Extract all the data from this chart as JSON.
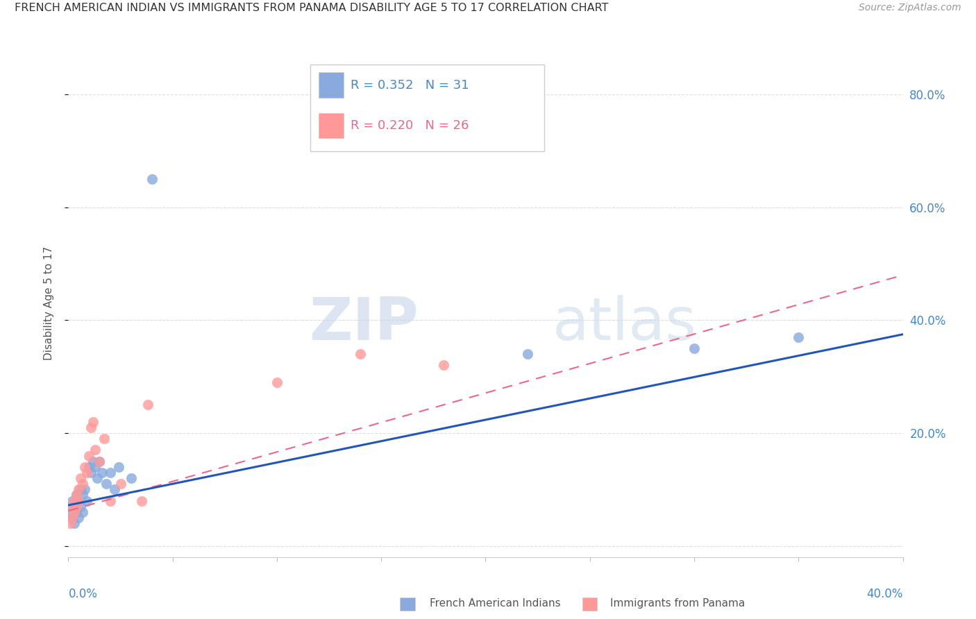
{
  "title": "FRENCH AMERICAN INDIAN VS IMMIGRANTS FROM PANAMA DISABILITY AGE 5 TO 17 CORRELATION CHART",
  "source": "Source: ZipAtlas.com",
  "ylabel": "Disability Age 5 to 17",
  "xrange": [
    0,
    0.4
  ],
  "yrange": [
    -0.02,
    0.88
  ],
  "legend_label1": "R = 0.352   N = 31",
  "legend_label2": "R = 0.220   N = 26",
  "color_blue": "#88AADD",
  "color_pink": "#FF9999",
  "trendline1_color": "#2255BB",
  "trendline2_color": "#EE6688",
  "blue_scatter_x": [
    0.001,
    0.002,
    0.002,
    0.003,
    0.003,
    0.004,
    0.004,
    0.005,
    0.005,
    0.006,
    0.006,
    0.007,
    0.007,
    0.008,
    0.009,
    0.01,
    0.011,
    0.012,
    0.013,
    0.014,
    0.015,
    0.016,
    0.018,
    0.02,
    0.022,
    0.024,
    0.03,
    0.04,
    0.22,
    0.3,
    0.35
  ],
  "blue_scatter_y": [
    0.06,
    0.08,
    0.05,
    0.07,
    0.04,
    0.09,
    0.06,
    0.08,
    0.05,
    0.1,
    0.07,
    0.09,
    0.06,
    0.1,
    0.08,
    0.14,
    0.13,
    0.15,
    0.14,
    0.12,
    0.15,
    0.13,
    0.11,
    0.13,
    0.1,
    0.14,
    0.12,
    0.65,
    0.34,
    0.35,
    0.37
  ],
  "pink_scatter_x": [
    0.001,
    0.002,
    0.002,
    0.003,
    0.003,
    0.004,
    0.004,
    0.005,
    0.005,
    0.006,
    0.007,
    0.008,
    0.009,
    0.01,
    0.011,
    0.012,
    0.013,
    0.015,
    0.017,
    0.02,
    0.025,
    0.035,
    0.038,
    0.1,
    0.14,
    0.18
  ],
  "pink_scatter_y": [
    0.04,
    0.05,
    0.07,
    0.06,
    0.08,
    0.07,
    0.09,
    0.1,
    0.08,
    0.12,
    0.11,
    0.14,
    0.13,
    0.16,
    0.21,
    0.22,
    0.17,
    0.15,
    0.19,
    0.08,
    0.11,
    0.08,
    0.25,
    0.29,
    0.34,
    0.32
  ],
  "watermark_zip": "ZIP",
  "watermark_atlas": "atlas",
  "background_color": "#ffffff",
  "grid_color": "#dddddd",
  "ytick_values": [
    0.0,
    0.2,
    0.4,
    0.6,
    0.8
  ],
  "ytick_labels": [
    "",
    "20.0%",
    "40.0%",
    "60.0%",
    "80.0%"
  ],
  "xtick_values": [
    0.0,
    0.05,
    0.1,
    0.15,
    0.2,
    0.25,
    0.3,
    0.35,
    0.4
  ],
  "bottom_legend_label1": "French American Indians",
  "bottom_legend_label2": "Immigrants from Panama"
}
